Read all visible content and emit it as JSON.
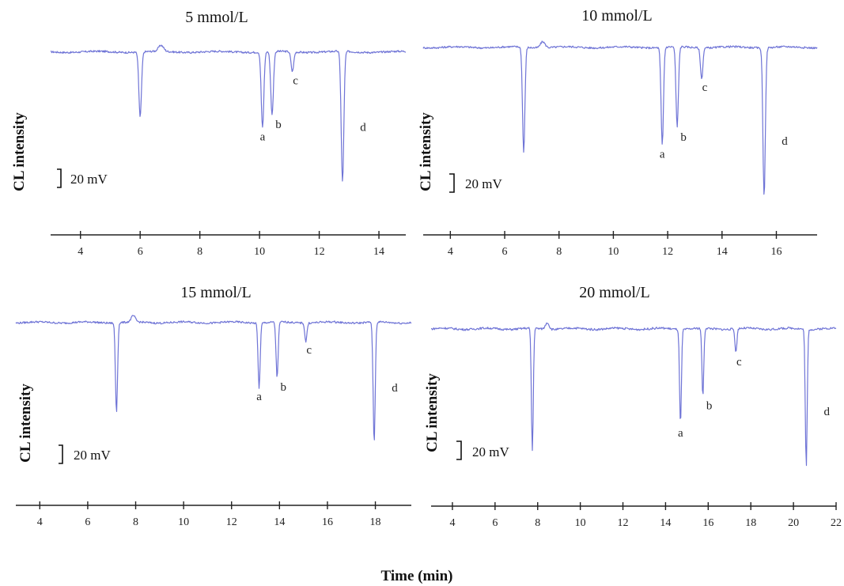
{
  "figure": {
    "x_axis_label": "Time (min)",
    "scale_bar_label": "20 mV",
    "trace_color": "#6f74d6"
  },
  "chart_data": [
    {
      "type": "line",
      "title": "5 mmol/L",
      "ylabel": "CL intensity",
      "xlabel": "Time (min)",
      "xlim": [
        3.0,
        14.9
      ],
      "ylim": [
        -92,
        5
      ],
      "xticks": [
        4,
        6,
        8,
        10,
        12,
        14
      ],
      "baseline": 0,
      "peaks": [
        {
          "x": 6.0,
          "depth": 43,
          "label": ""
        },
        {
          "x": 10.1,
          "depth": 50,
          "label": "a"
        },
        {
          "x": 10.42,
          "depth": 42,
          "label": "b"
        },
        {
          "x": 11.1,
          "depth": 13,
          "label": "c"
        },
        {
          "x": 12.78,
          "depth": 86,
          "label": "d"
        }
      ],
      "grid": false
    },
    {
      "type": "line",
      "title": "10 mmol/L",
      "ylabel": "CL intensity",
      "xlabel": "Time (min)",
      "xlim": [
        3.0,
        17.5
      ],
      "ylim": [
        -98,
        5
      ],
      "xticks": [
        4,
        6,
        8,
        10,
        12,
        14,
        16
      ],
      "baseline": 0,
      "peaks": [
        {
          "x": 6.7,
          "depth": 68,
          "label": ""
        },
        {
          "x": 11.8,
          "depth": 63,
          "label": "a"
        },
        {
          "x": 12.35,
          "depth": 52,
          "label": "b"
        },
        {
          "x": 13.25,
          "depth": 20,
          "label": "c"
        },
        {
          "x": 15.55,
          "depth": 96,
          "label": "d"
        }
      ],
      "grid": false
    },
    {
      "type": "line",
      "title": "15 mmol/L",
      "ylabel": "CL intensity",
      "xlabel": "Time (min)",
      "xlim": [
        3.0,
        19.5
      ],
      "ylim": [
        -82,
        5
      ],
      "xticks": [
        4,
        6,
        8,
        10,
        12,
        14,
        16,
        18
      ],
      "baseline": 0,
      "peaks": [
        {
          "x": 7.2,
          "depth": 58,
          "label": ""
        },
        {
          "x": 13.15,
          "depth": 42,
          "label": "a"
        },
        {
          "x": 13.9,
          "depth": 36,
          "label": "b"
        },
        {
          "x": 15.1,
          "depth": 12,
          "label": "c"
        },
        {
          "x": 17.95,
          "depth": 78,
          "label": "d"
        }
      ],
      "grid": false
    },
    {
      "type": "line",
      "title": "20 mmol/L",
      "ylabel": "CL intensity",
      "xlabel": "Time (min)",
      "xlim": [
        3.0,
        22.0
      ],
      "ylim": [
        -82,
        5
      ],
      "xticks": [
        4,
        6,
        8,
        10,
        12,
        14,
        16,
        18,
        20,
        22
      ],
      "baseline": 0,
      "peaks": [
        {
          "x": 7.75,
          "depth": 72,
          "label": ""
        },
        {
          "x": 14.7,
          "depth": 56,
          "label": "a"
        },
        {
          "x": 15.75,
          "depth": 40,
          "label": "b"
        },
        {
          "x": 17.3,
          "depth": 14,
          "label": "c"
        },
        {
          "x": 20.6,
          "depth": 81,
          "label": "d"
        }
      ],
      "grid": false
    }
  ]
}
